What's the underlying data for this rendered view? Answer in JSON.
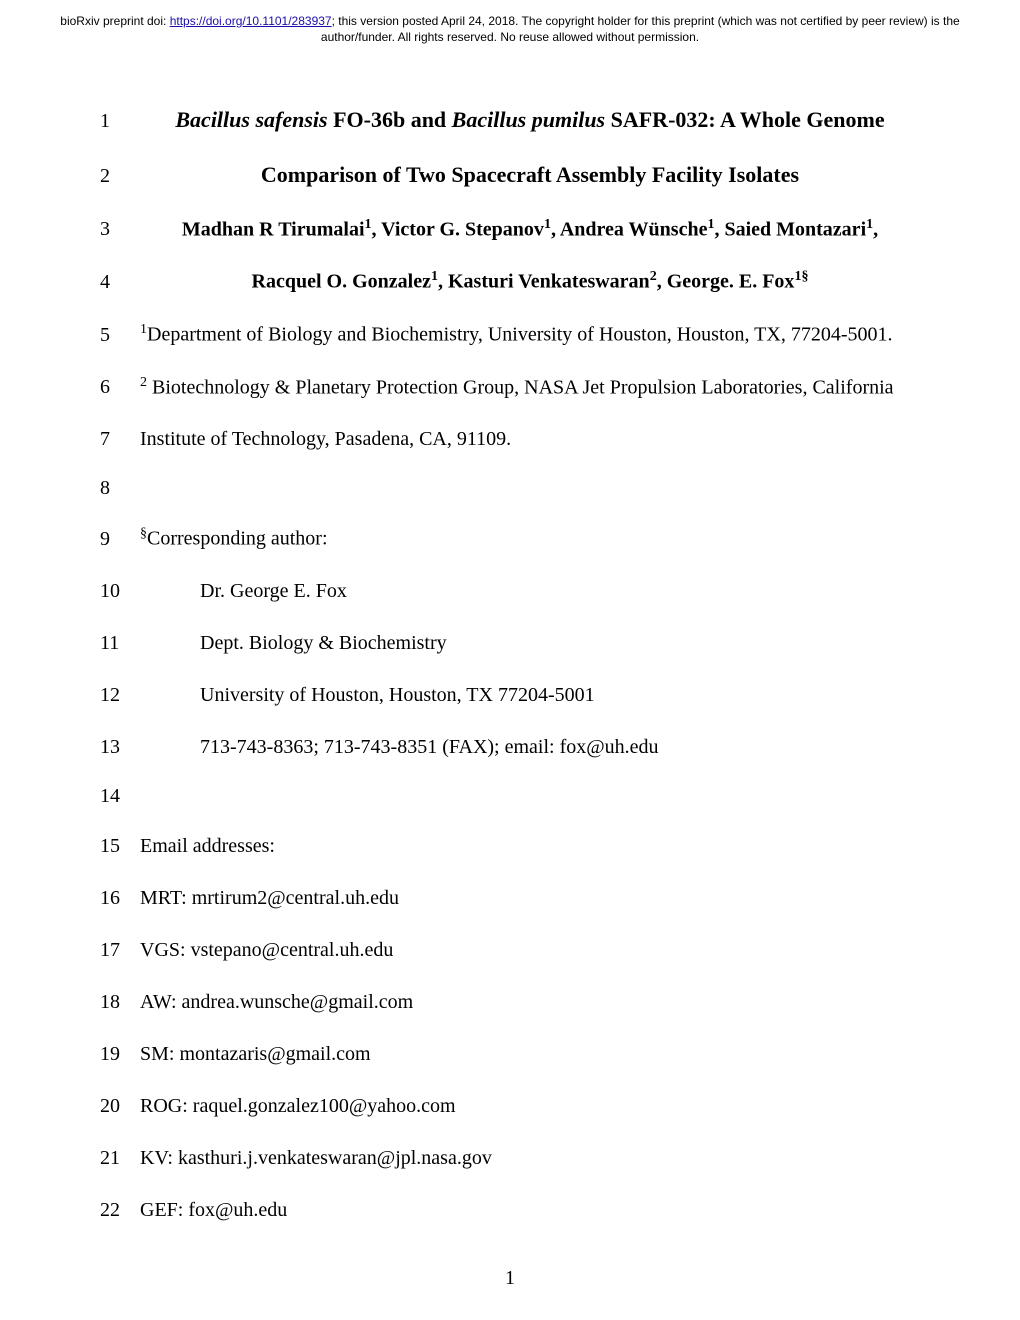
{
  "preprint_notice": {
    "prefix": "bioRxiv preprint doi: ",
    "doi_url": "https://doi.org/10.1101/283937",
    "suffix": "; this version posted April 24, 2018. The copyright holder for this preprint (which was not certified by peer review) is the author/funder. All rights reserved. No reuse allowed without permission."
  },
  "lines": {
    "l1": {
      "n": "1",
      "html": "<i>Bacillus safensis</i> FO-36b and <i>Bacillus pumilus</i> SAFR-032: A Whole Genome"
    },
    "l2": {
      "n": "2",
      "html": "Comparison of Two Spacecraft Assembly Facility Isolates"
    },
    "l3": {
      "n": "3",
      "html": "Madhan R Tirumalai<sup>1</sup>, Victor G. Stepanov<sup>1</sup>, Andrea Wünsche<sup>1</sup>, Saied Montazari<sup>1</sup>,"
    },
    "l4": {
      "n": "4",
      "html": "Racquel O. Gonzalez<sup>1</sup>, Kasturi Venkateswaran<sup>2</sup>, George. E. Fox<sup>1§</sup>"
    },
    "l5": {
      "n": "5",
      "html": "<sup>1</sup>Department of Biology and Biochemistry, University of Houston, Houston, TX, 77204-5001."
    },
    "l6": {
      "n": "6",
      "html": "<sup>2</sup> Biotechnology &amp; Planetary Protection Group, NASA Jet Propulsion Laboratories, California"
    },
    "l7": {
      "n": "7",
      "html": "Institute of Technology, Pasadena, CA, 91109."
    },
    "l8": {
      "n": "8",
      "html": ""
    },
    "l9": {
      "n": "9",
      "html": "<sup>§</sup>Corresponding author:"
    },
    "l10": {
      "n": "10",
      "html": "Dr. George E. Fox"
    },
    "l11": {
      "n": "11",
      "html": "Dept. Biology &amp; Biochemistry"
    },
    "l12": {
      "n": "12",
      "html": "University of Houston, Houston, TX 77204-5001"
    },
    "l13": {
      "n": "13",
      "html": "713-743-8363; 713-743-8351 (FAX); email: fox@uh.edu"
    },
    "l14": {
      "n": "14",
      "html": ""
    },
    "l15": {
      "n": "15",
      "html": "Email addresses:"
    },
    "l16": {
      "n": "16",
      "html": "MRT: mrtirum2@central.uh.edu"
    },
    "l17": {
      "n": "17",
      "html": "VGS: vstepano@central.uh.edu"
    },
    "l18": {
      "n": "18",
      "html": "AW: andrea.wunsche@gmail.com"
    },
    "l19": {
      "n": "19",
      "html": "SM: montazaris@gmail.com"
    },
    "l20": {
      "n": "20",
      "html": "ROG: raquel.gonzalez100@yahoo.com"
    },
    "l21": {
      "n": "21",
      "html": "KV: kasthuri.j.venkateswaran@jpl.nasa.gov"
    },
    "l22": {
      "n": "22",
      "html": "GEF: fox@uh.edu"
    }
  },
  "page_number": "1",
  "colors": {
    "link": "#1a0dab",
    "text": "#000000",
    "background": "#ffffff"
  },
  "typography": {
    "body_family": "Times New Roman",
    "body_size_pt": 15,
    "header_family": "Arial",
    "header_size_pt": 9,
    "title_weight": "bold"
  }
}
